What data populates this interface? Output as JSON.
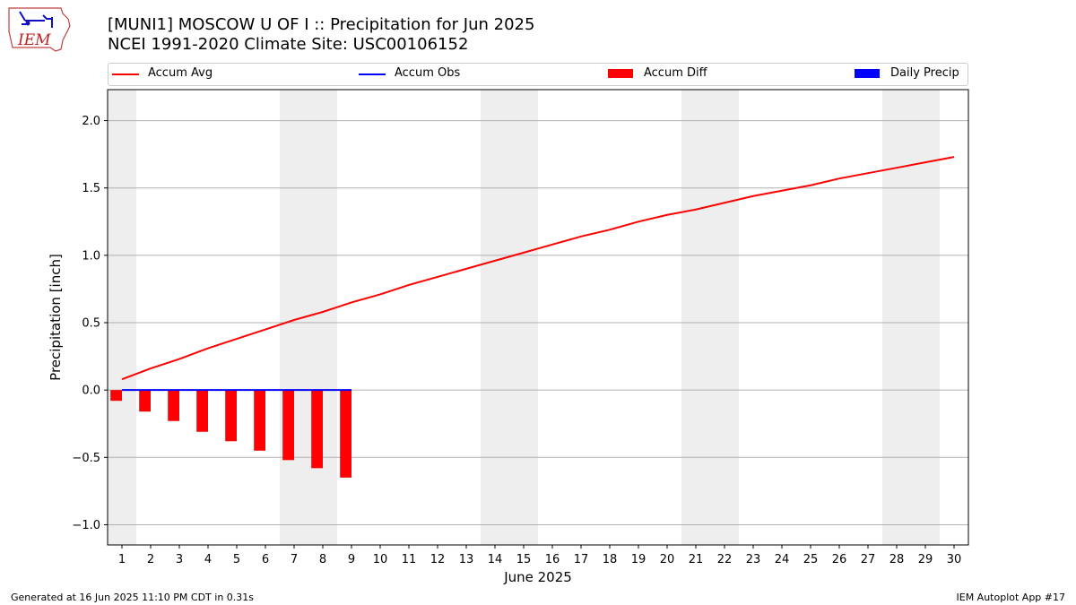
{
  "header": {
    "title_line1": "[MUNI1] MOSCOW U OF I :: Precipitation for Jun 2025",
    "title_line2": "NCEI 1991-2020 Climate Site: USC00106152"
  },
  "logo": {
    "text": "IEM"
  },
  "footer": {
    "generated": "Generated at 16 Jun 2025 11:10 PM CDT in 0.31s",
    "app": "IEM Autoplot App #17"
  },
  "legend": {
    "items": [
      {
        "label": "Accum Avg",
        "color": "#ff0000",
        "kind": "line"
      },
      {
        "label": "Accum Obs",
        "color": "#0000ff",
        "kind": "line"
      },
      {
        "label": "Accum Diff",
        "color": "#ff0000",
        "kind": "patch"
      },
      {
        "label": "Daily Precip",
        "color": "#0000ff",
        "kind": "patch"
      }
    ],
    "placement": "top"
  },
  "chart_data": {
    "type": "line",
    "xlabel": "June 2025",
    "ylabel": "Precipitation [inch]",
    "xlim": [
      0.5,
      30.5
    ],
    "ylim": [
      -1.15,
      2.23
    ],
    "grid": "horizontal",
    "x_ticks": [
      1,
      2,
      3,
      4,
      5,
      6,
      7,
      8,
      9,
      10,
      11,
      12,
      13,
      14,
      15,
      16,
      17,
      18,
      19,
      20,
      21,
      22,
      23,
      24,
      25,
      26,
      27,
      28,
      29,
      30
    ],
    "y_ticks": [
      -1.0,
      -0.5,
      0.0,
      0.5,
      1.0,
      1.5,
      2.0
    ],
    "y_tick_labels": [
      "−1.0",
      "−0.5",
      "0.0",
      "0.5",
      "1.0",
      "1.5",
      "2.0"
    ],
    "weekend_bands": [
      [
        0.5,
        1.5
      ],
      [
        6.5,
        8.5
      ],
      [
        13.5,
        15.5
      ],
      [
        20.5,
        22.5
      ],
      [
        27.5,
        29.5
      ]
    ],
    "series": [
      {
        "name": "Accum Avg",
        "kind": "line",
        "color": "#ff0000",
        "x": [
          1,
          2,
          3,
          4,
          5,
          6,
          7,
          8,
          9,
          10,
          11,
          12,
          13,
          14,
          15,
          16,
          17,
          18,
          19,
          20,
          21,
          22,
          23,
          24,
          25,
          26,
          27,
          28,
          29,
          30
        ],
        "values": [
          0.08,
          0.16,
          0.23,
          0.31,
          0.38,
          0.45,
          0.52,
          0.58,
          0.65,
          0.71,
          0.78,
          0.84,
          0.9,
          0.96,
          1.02,
          1.08,
          1.14,
          1.19,
          1.25,
          1.3,
          1.34,
          1.39,
          1.44,
          1.48,
          1.52,
          1.57,
          1.61,
          1.65,
          1.69,
          1.73
        ]
      },
      {
        "name": "Accum Obs",
        "kind": "line",
        "color": "#0000ff",
        "x": [
          1,
          2,
          3,
          4,
          5,
          6,
          7,
          8,
          9
        ],
        "values": [
          0,
          0,
          0,
          0,
          0,
          0,
          0,
          0,
          0
        ]
      },
      {
        "name": "Accum Diff",
        "kind": "bar",
        "color": "#ff0000",
        "x": [
          1,
          2,
          3,
          4,
          5,
          6,
          7,
          8,
          9
        ],
        "values": [
          -0.08,
          -0.16,
          -0.23,
          -0.31,
          -0.38,
          -0.45,
          -0.52,
          -0.58,
          -0.65
        ]
      },
      {
        "name": "Daily Precip",
        "kind": "bar",
        "color": "#0000ff",
        "x": [
          1,
          2,
          3,
          4,
          5,
          6,
          7,
          8,
          9
        ],
        "values": [
          0,
          0,
          0,
          0,
          0,
          0,
          0,
          0,
          0
        ]
      }
    ]
  }
}
